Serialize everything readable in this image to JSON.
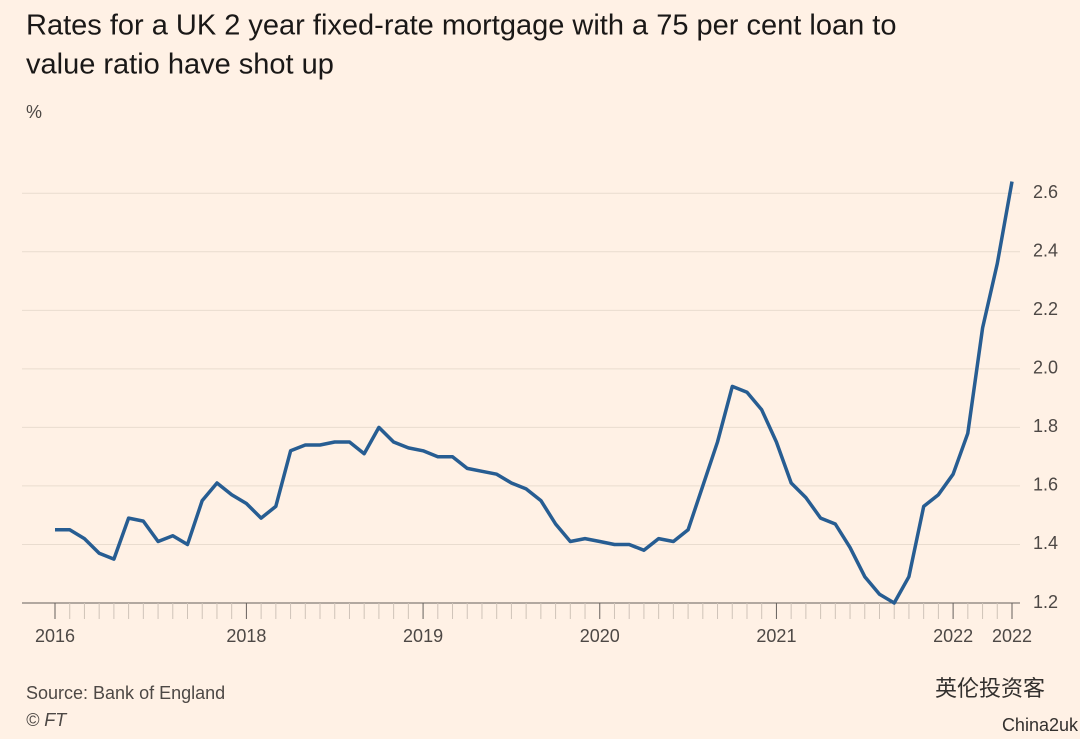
{
  "chart_data": {
    "type": "line",
    "title": "Rates for a UK 2 year fixed-rate mortgage with a 75 per cent loan to value ratio have shot up",
    "y_label": "%",
    "source": "Source: Bank of England",
    "copyright": "© FT",
    "watermark": [
      "英伦投资客",
      "China2uk"
    ],
    "categories": [
      "2016",
      null,
      null,
      null,
      null,
      null,
      null,
      null,
      null,
      null,
      null,
      null,
      null,
      "2018",
      null,
      null,
      null,
      null,
      null,
      null,
      null,
      null,
      null,
      null,
      null,
      "2019",
      null,
      null,
      null,
      null,
      null,
      null,
      null,
      null,
      null,
      null,
      null,
      "2020",
      null,
      null,
      null,
      null,
      null,
      null,
      null,
      null,
      null,
      null,
      null,
      "2021",
      null,
      null,
      null,
      null,
      null,
      null,
      null,
      null,
      null,
      null,
      null,
      "2022",
      null,
      null,
      null,
      "2022"
    ],
    "series": [
      {
        "name": "2 year fixed-rate mortgage, 75% LTV",
        "color": "#275d92",
        "values": [
          1.45,
          1.45,
          1.42,
          1.37,
          1.35,
          1.49,
          1.48,
          1.41,
          1.43,
          1.4,
          1.55,
          1.61,
          1.57,
          1.54,
          1.49,
          1.53,
          1.72,
          1.74,
          1.74,
          1.75,
          1.75,
          1.71,
          1.8,
          1.75,
          1.73,
          1.72,
          1.7,
          1.7,
          1.66,
          1.65,
          1.64,
          1.61,
          1.59,
          1.55,
          1.47,
          1.41,
          1.42,
          1.41,
          1.4,
          1.4,
          1.38,
          1.42,
          1.41,
          1.45,
          1.6,
          1.75,
          1.94,
          1.92,
          1.86,
          1.75,
          1.61,
          1.56,
          1.49,
          1.47,
          1.39,
          1.29,
          1.23,
          1.2,
          1.29,
          1.53,
          1.57,
          1.64,
          1.78,
          2.14,
          2.36,
          2.64
        ]
      }
    ],
    "ylim": [
      1.2,
      2.7
    ],
    "yticks": [
      1.2,
      1.4,
      1.6,
      1.8,
      {
        "value": 2,
        "label": "2.0"
      },
      2.2,
      2.4,
      2.6
    ],
    "grid": true
  }
}
